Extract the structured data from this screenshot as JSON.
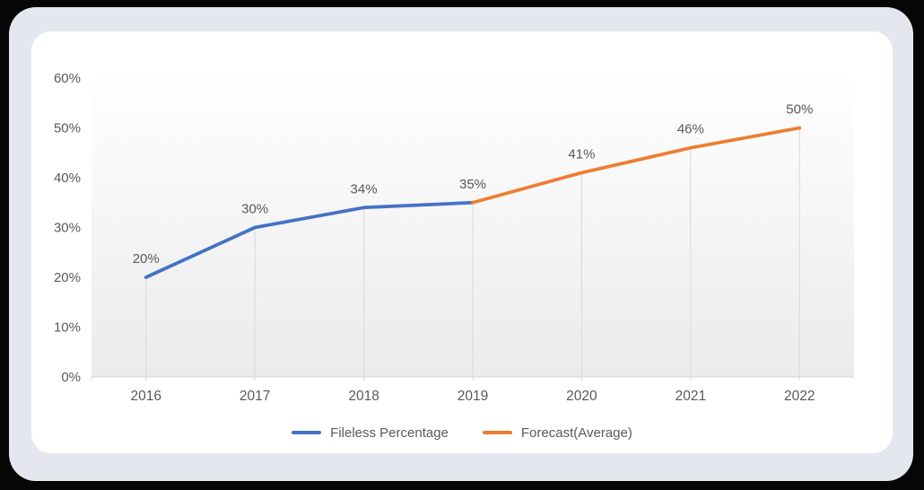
{
  "chart_data": {
    "type": "line",
    "title": "",
    "categories": [
      "2016",
      "2017",
      "2018",
      "2019",
      "2020",
      "2021",
      "2022"
    ],
    "series": [
      {
        "name": "Fileless Percentage",
        "color": "#4472C4",
        "values": [
          20,
          30,
          34,
          35,
          null,
          null,
          null
        ]
      },
      {
        "name": "Forecast(Average)",
        "color": "#ED7D31",
        "values": [
          null,
          null,
          null,
          35,
          41,
          46,
          50
        ]
      }
    ],
    "data_labels": [
      "20%",
      "30%",
      "34%",
      "35%",
      "41%",
      "46%",
      "50%"
    ],
    "y_axis": {
      "ticks": [
        "0%",
        "10%",
        "20%",
        "30%",
        "40%",
        "50%",
        "60%"
      ],
      "tick_values": [
        0,
        10,
        20,
        30,
        40,
        50,
        60
      ],
      "min": 0,
      "max": 60,
      "unit": "%"
    },
    "legend": {
      "position": "bottom",
      "entries": [
        {
          "label": "Fileless Percentage",
          "color": "#4472C4"
        },
        {
          "label": "Forecast(Average)",
          "color": "#ED7D31"
        }
      ]
    },
    "grid": "vertical-drop-lines",
    "colors": {
      "text": "#595959",
      "axis": "#d9d9d9",
      "plot_fill_top": "#ffffff",
      "plot_fill_bottom": "#ebebeb",
      "panel_background": "#e4e8ee",
      "card_background": "#ffffff",
      "page_background": "#060606"
    }
  }
}
